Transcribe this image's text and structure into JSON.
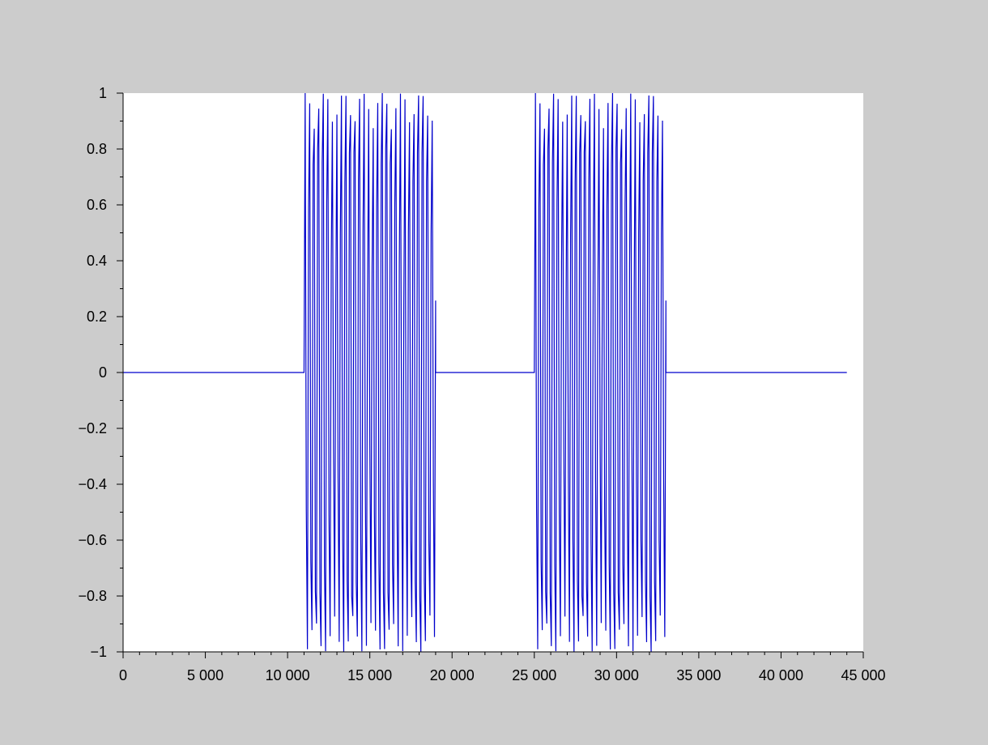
{
  "colors": {
    "figure_background": "#cccccc",
    "plot_background": "#ffffff",
    "signal": "#0000cc",
    "axis": "#000000"
  },
  "chart_data": {
    "type": "line",
    "title": "",
    "xlabel": "",
    "ylabel": "",
    "xlim": [
      0,
      45000
    ],
    "ylim": [
      -1,
      1
    ],
    "grid": false,
    "x_ticks": [
      0,
      5000,
      10000,
      15000,
      20000,
      25000,
      30000,
      35000,
      40000,
      45000
    ],
    "x_tick_labels": [
      "0",
      "5 000",
      "10 000",
      "15 000",
      "20 000",
      "25 000",
      "30 000",
      "35 000",
      "40 000",
      "45 000"
    ],
    "y_ticks": [
      1,
      0.8,
      0.6,
      0.4,
      0.2,
      0,
      -0.2,
      -0.4,
      -0.6,
      -0.8,
      -1
    ],
    "y_tick_labels": [
      "1",
      "0.8",
      "0.6",
      "0.4",
      "0.2",
      "0",
      "−0.2",
      "−0.4",
      "−0.6",
      "−0.8",
      "−1"
    ],
    "series": [
      {
        "description_of_shape": "zero baseline with two bursts of a dense oscillation of amplitude about 1",
        "x_start": 0,
        "x_end": 44000,
        "baseline": 0,
        "bursts": [
          {
            "start": 11000,
            "end": 19000,
            "amplitude": 1.0,
            "cycles": 29
          },
          {
            "start": 25000,
            "end": 33000,
            "amplitude": 1.0,
            "cycles": 29
          }
        ]
      }
    ]
  }
}
